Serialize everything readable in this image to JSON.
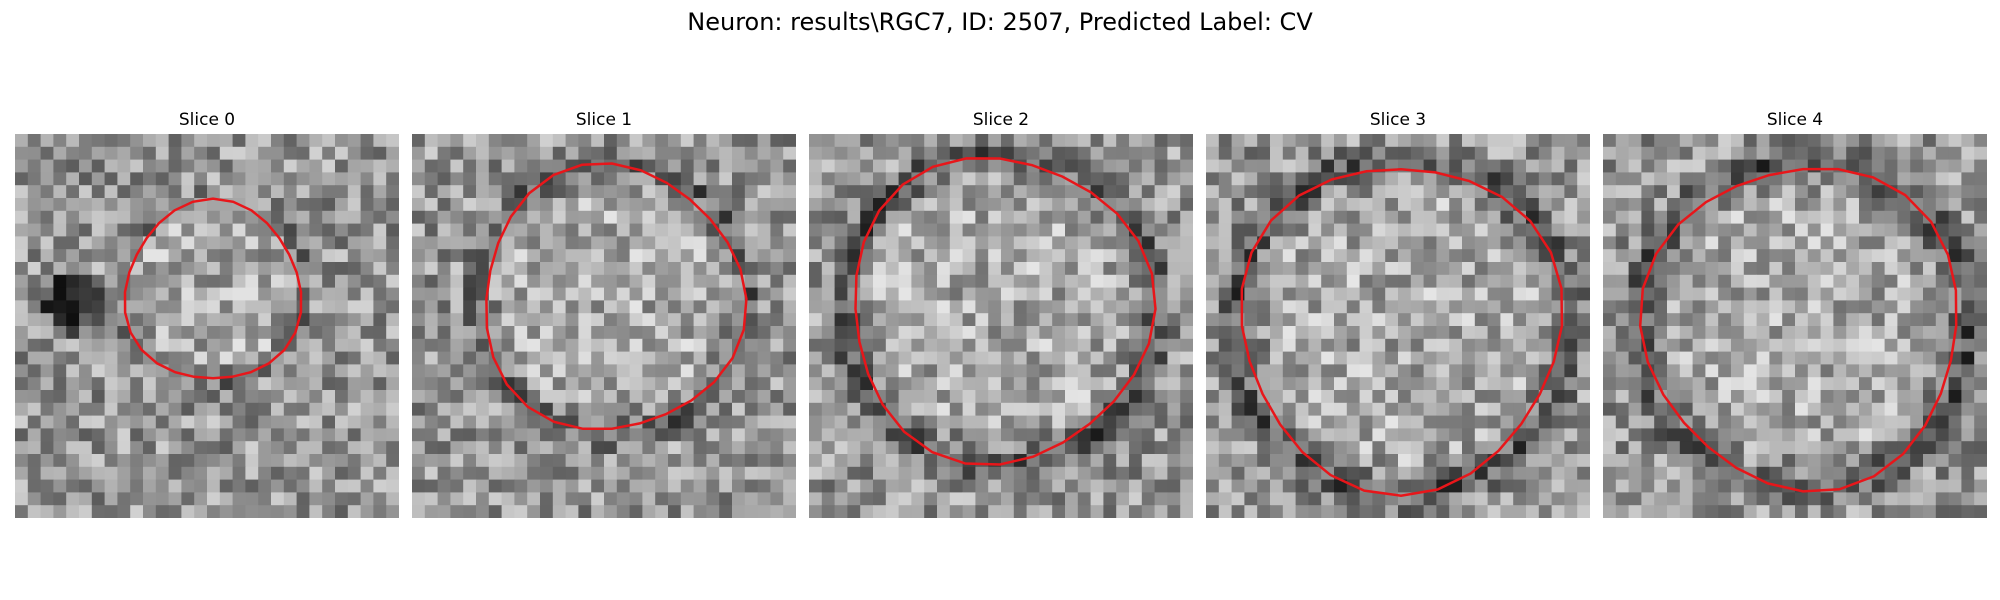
{
  "figure_title": "Neuron: results\\RGC7, ID: 2507, Predicted Label: CV",
  "contour_color": "#e8161a",
  "colormap": "gray",
  "panels": [
    {
      "title": "Slice 0",
      "contour_image": "red roi outline"
    },
    {
      "title": "Slice 1",
      "contour_image": "red roi outline"
    },
    {
      "title": "Slice 2",
      "contour_image": "red roi outline"
    },
    {
      "title": "Slice 3",
      "contour_image": "red roi outline"
    },
    {
      "title": "Slice 4",
      "contour_image": "red roi outline"
    }
  ]
}
